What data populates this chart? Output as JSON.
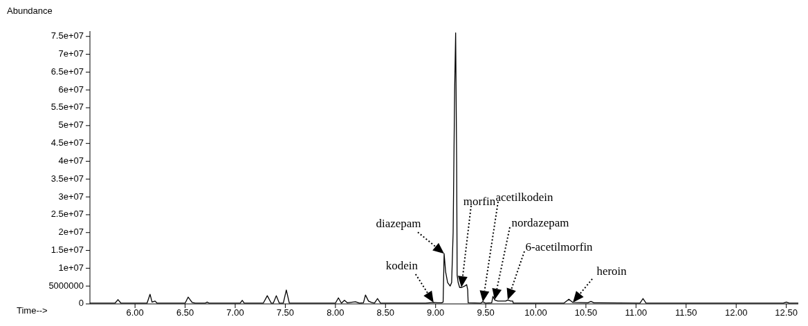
{
  "chart_data": {
    "type": "line",
    "xlabel": "Time-->",
    "ylabel": "Abundance",
    "color": "#000000",
    "marker": "none",
    "x": [
      5.55,
      5.8,
      5.83,
      5.86,
      6.12,
      6.15,
      6.17,
      6.2,
      6.22,
      6.5,
      6.53,
      6.57,
      6.6,
      6.7,
      6.72,
      6.74,
      7.05,
      7.07,
      7.09,
      7.28,
      7.32,
      7.36,
      7.38,
      7.41,
      7.44,
      7.48,
      7.51,
      7.54,
      8.0,
      8.03,
      8.06,
      8.09,
      8.12,
      8.2,
      8.24,
      8.28,
      8.3,
      8.33,
      8.36,
      8.39,
      8.42,
      8.45,
      8.9,
      8.98,
      9.02,
      9.06,
      9.075,
      9.085,
      9.1,
      9.12,
      9.145,
      9.16,
      9.175,
      9.19,
      9.2,
      9.21,
      9.215,
      9.225,
      9.24,
      9.26,
      9.29,
      9.31,
      9.32,
      9.325,
      9.45,
      9.47,
      9.5,
      9.56,
      9.572,
      9.59,
      9.62,
      9.7,
      9.72,
      9.75,
      9.77,
      9.775,
      10.28,
      10.33,
      10.37,
      10.52,
      10.55,
      10.58,
      10.62,
      11.04,
      11.07,
      11.1,
      12.47,
      12.5,
      12.53,
      12.62
    ],
    "values": [
      200000,
      200000,
      1200000,
      200000,
      200000,
      2700000,
      500000,
      800000,
      200000,
      200000,
      1900000,
      400000,
      200000,
      200000,
      500000,
      200000,
      200000,
      1000000,
      200000,
      200000,
      2300000,
      200000,
      200000,
      2300000,
      200000,
      200000,
      3900000,
      200000,
      200000,
      1700000,
      200000,
      1000000,
      300000,
      600000,
      200000,
      300000,
      2500000,
      800000,
      400000,
      200000,
      1500000,
      200000,
      200000,
      400000,
      300000,
      300000,
      500000,
      14100000,
      9000000,
      6000000,
      5000000,
      6000000,
      20000000,
      60000000,
      76000000,
      40000000,
      8000000,
      6000000,
      4600000,
      4600000,
      5000000,
      5400000,
      4000000,
      300000,
      200000,
      600000,
      200000,
      300000,
      2100000,
      1100000,
      800000,
      800000,
      1100000,
      800000,
      800000,
      200000,
      200000,
      1300000,
      400000,
      300000,
      700000,
      300000,
      300000,
      200000,
      1500000,
      200000,
      200000,
      500000,
      200000,
      200000
    ],
    "xlim": [
      5.55,
      12.62
    ],
    "xticks": [
      {
        "value": 6,
        "label": "6.00"
      },
      {
        "value": 6.5,
        "label": "6.50"
      },
      {
        "value": 7,
        "label": "7.00"
      },
      {
        "value": 7.5,
        "label": "7.50"
      },
      {
        "value": 8,
        "label": "8.00"
      },
      {
        "value": 8.5,
        "label": "8.50"
      },
      {
        "value": 9,
        "label": "9.00"
      },
      {
        "value": 9.5,
        "label": "9.50"
      },
      {
        "value": 10,
        "label": "10.00"
      },
      {
        "value": 10.5,
        "label": "10.50"
      },
      {
        "value": 11,
        "label": "11.00"
      },
      {
        "value": 11.5,
        "label": "11.50"
      },
      {
        "value": 12,
        "label": "12.00"
      },
      {
        "value": 12.5,
        "label": "12.50"
      }
    ],
    "ylim": [
      0,
      76500000
    ],
    "yticks": [
      0,
      5000000,
      {
        "value": 10000000,
        "label": "1e+07"
      },
      {
        "value": 15000000,
        "label": "1.5e+07"
      },
      {
        "value": 20000000,
        "label": "2e+07"
      },
      {
        "value": 25000000,
        "label": "2.5e+07"
      },
      {
        "value": 30000000,
        "label": "3e+07"
      },
      {
        "value": 35000000,
        "label": "3.5e+07"
      },
      {
        "value": 40000000,
        "label": "4e+07"
      },
      {
        "value": 45000000,
        "label": "4.5e+07"
      },
      {
        "value": 50000000,
        "label": "5e+07"
      },
      {
        "value": 55000000,
        "label": "5.5e+07"
      },
      {
        "value": 60000000,
        "label": "6e+07"
      },
      {
        "value": 65000000,
        "label": "6.5e+07"
      },
      {
        "value": 70000000,
        "label": "7e+07"
      },
      {
        "value": 75000000,
        "label": "7.5e+07"
      }
    ],
    "annotations": [
      {
        "text": "kodein",
        "x": 8.98,
        "y": 400000
      },
      {
        "text": "diazepam",
        "x": 9.085,
        "y": 14100000
      },
      "morfin",
      "acetilkodein",
      "nordazepam",
      "6-acetilmorfin",
      {
        "text": "heroin",
        "x": 10.37,
        "y": 400000
      }
    ]
  }
}
